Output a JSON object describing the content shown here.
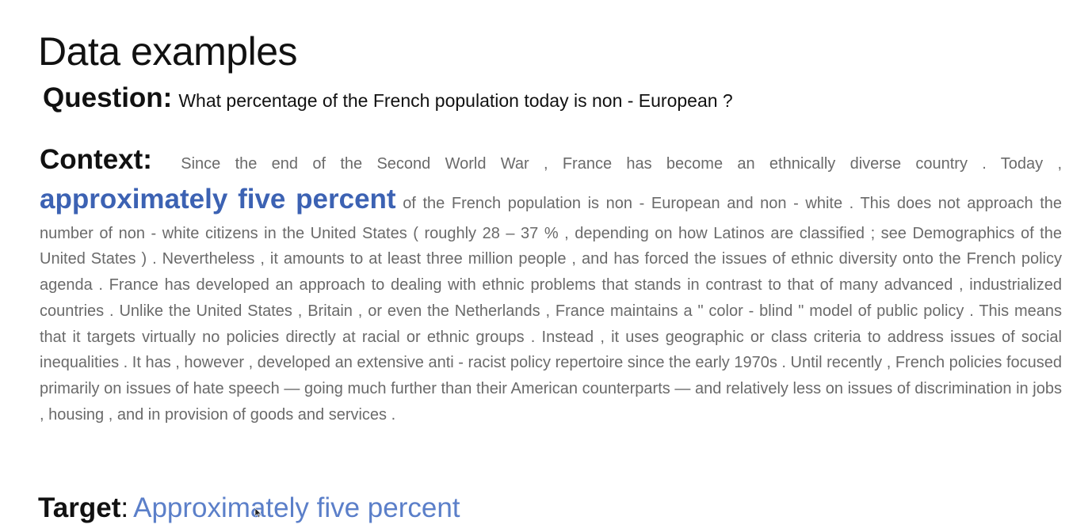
{
  "slide": {
    "title": "Data examples"
  },
  "question": {
    "label": "Question:",
    "text": "What percentage of the French population today is non - European ?"
  },
  "context": {
    "label": "Context:",
    "text_before": "Since the end of the Second World War , France has become an ethnically diverse country . Today ,",
    "answer_highlight": "approximately five percent",
    "text_after": "of the French population is non - European and non - white . This does not approach the number of non - white citizens in the United States ( roughly 28 – 37 % , depending on how Latinos are classified ; see Demographics of the United States ) . Nevertheless , it amounts to at least three million people , and has forced the issues of ethnic diversity onto the French policy agenda . France has developed an approach to dealing with ethnic problems that stands in contrast to that of many advanced , industrialized countries . Unlike the United States , Britain , or even the Netherlands , France maintains a \" color - blind \" model of public policy . This means that it targets virtually no policies directly at racial or ethnic groups . Instead , it uses geographic or class criteria to address issues of social inequalities . It has , however , developed an extensive anti - racist policy repertoire since the early 1970s . Until recently , French policies focused primarily on issues of hate speech — going much further than their American counterparts — and relatively less on issues of discrimination in jobs , housing , and in provision of goods and services ."
  },
  "target": {
    "label": "Target",
    "colon": ":",
    "text": "Approximately five percent"
  },
  "colors": {
    "highlight": "#3c62b3",
    "target": "#5b7fc9",
    "context_text": "#6a6a6a"
  }
}
